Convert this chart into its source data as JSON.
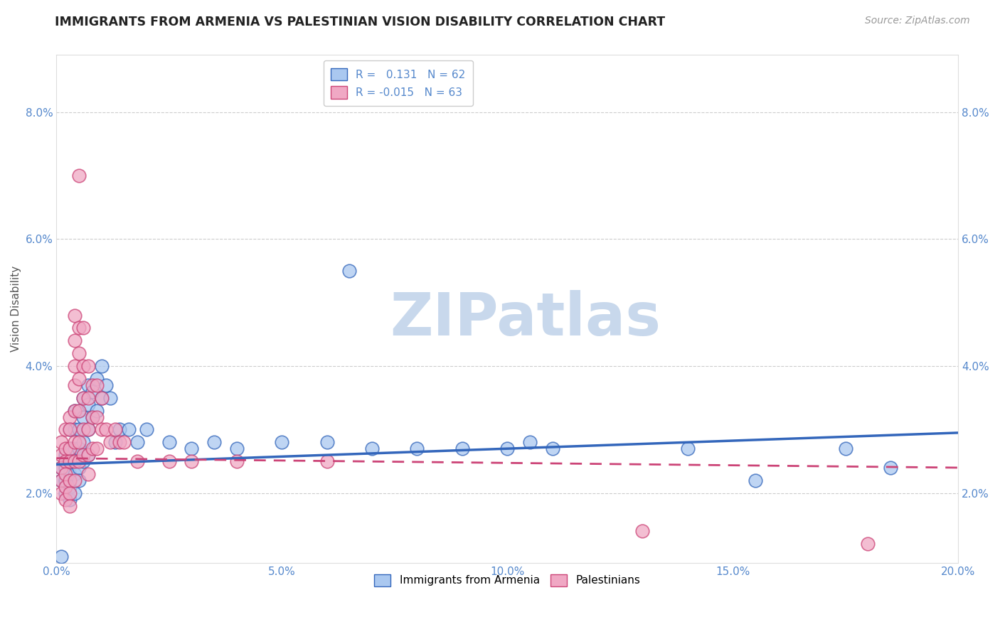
{
  "title": "IMMIGRANTS FROM ARMENIA VS PALESTINIAN VISION DISABILITY CORRELATION CHART",
  "source": "Source: ZipAtlas.com",
  "ylabel": "Vision Disability",
  "xlabel": "",
  "legend_bottom": [
    "Immigrants from Armenia",
    "Palestinians"
  ],
  "armenia_R": "0.131",
  "armenia_N": "62",
  "palestine_R": "-0.015",
  "palestine_N": "63",
  "xlim": [
    0.0,
    0.2
  ],
  "ylim": [
    0.009,
    0.089
  ],
  "yticks": [
    0.02,
    0.04,
    0.06,
    0.08
  ],
  "ytick_labels": [
    "2.0%",
    "4.0%",
    "6.0%",
    "8.0%"
  ],
  "xticks": [
    0.0,
    0.05,
    0.1,
    0.15,
    0.2
  ],
  "xtick_labels": [
    "0.0%",
    "5.0%",
    "10.0%",
    "15.0%",
    "20.0%"
  ],
  "color_armenia": "#aac8f0",
  "color_palestine": "#f0a8c4",
  "line_armenia": "#3366bb",
  "line_palestine": "#cc4477",
  "background_color": "#ffffff",
  "armenia_points": [
    [
      0.001,
      0.024
    ],
    [
      0.001,
      0.022
    ],
    [
      0.001,
      0.01
    ],
    [
      0.002,
      0.026
    ],
    [
      0.002,
      0.024
    ],
    [
      0.002,
      0.022
    ],
    [
      0.002,
      0.02
    ],
    [
      0.003,
      0.03
    ],
    [
      0.003,
      0.027
    ],
    [
      0.003,
      0.025
    ],
    [
      0.003,
      0.023
    ],
    [
      0.003,
      0.021
    ],
    [
      0.003,
      0.019
    ],
    [
      0.004,
      0.033
    ],
    [
      0.004,
      0.03
    ],
    [
      0.004,
      0.027
    ],
    [
      0.004,
      0.025
    ],
    [
      0.004,
      0.023
    ],
    [
      0.004,
      0.02
    ],
    [
      0.005,
      0.033
    ],
    [
      0.005,
      0.03
    ],
    [
      0.005,
      0.027
    ],
    [
      0.005,
      0.024
    ],
    [
      0.005,
      0.022
    ],
    [
      0.006,
      0.035
    ],
    [
      0.006,
      0.032
    ],
    [
      0.006,
      0.028
    ],
    [
      0.006,
      0.025
    ],
    [
      0.007,
      0.037
    ],
    [
      0.007,
      0.034
    ],
    [
      0.007,
      0.03
    ],
    [
      0.007,
      0.026
    ],
    [
      0.008,
      0.036
    ],
    [
      0.008,
      0.032
    ],
    [
      0.009,
      0.038
    ],
    [
      0.009,
      0.033
    ],
    [
      0.01,
      0.04
    ],
    [
      0.01,
      0.035
    ],
    [
      0.011,
      0.037
    ],
    [
      0.012,
      0.035
    ],
    [
      0.013,
      0.028
    ],
    [
      0.014,
      0.03
    ],
    [
      0.016,
      0.03
    ],
    [
      0.018,
      0.028
    ],
    [
      0.02,
      0.03
    ],
    [
      0.025,
      0.028
    ],
    [
      0.03,
      0.027
    ],
    [
      0.035,
      0.028
    ],
    [
      0.04,
      0.027
    ],
    [
      0.05,
      0.028
    ],
    [
      0.06,
      0.028
    ],
    [
      0.065,
      0.055
    ],
    [
      0.07,
      0.027
    ],
    [
      0.08,
      0.027
    ],
    [
      0.09,
      0.027
    ],
    [
      0.1,
      0.027
    ],
    [
      0.105,
      0.028
    ],
    [
      0.11,
      0.027
    ],
    [
      0.14,
      0.027
    ],
    [
      0.155,
      0.022
    ],
    [
      0.175,
      0.027
    ],
    [
      0.185,
      0.024
    ]
  ],
  "palestine_points": [
    [
      0.001,
      0.028
    ],
    [
      0.001,
      0.026
    ],
    [
      0.001,
      0.024
    ],
    [
      0.001,
      0.022
    ],
    [
      0.001,
      0.02
    ],
    [
      0.002,
      0.03
    ],
    [
      0.002,
      0.027
    ],
    [
      0.002,
      0.025
    ],
    [
      0.002,
      0.023
    ],
    [
      0.002,
      0.021
    ],
    [
      0.002,
      0.019
    ],
    [
      0.003,
      0.032
    ],
    [
      0.003,
      0.03
    ],
    [
      0.003,
      0.027
    ],
    [
      0.003,
      0.025
    ],
    [
      0.003,
      0.022
    ],
    [
      0.003,
      0.02
    ],
    [
      0.003,
      0.018
    ],
    [
      0.004,
      0.048
    ],
    [
      0.004,
      0.044
    ],
    [
      0.004,
      0.04
    ],
    [
      0.004,
      0.037
    ],
    [
      0.004,
      0.033
    ],
    [
      0.004,
      0.028
    ],
    [
      0.004,
      0.025
    ],
    [
      0.004,
      0.022
    ],
    [
      0.005,
      0.07
    ],
    [
      0.005,
      0.046
    ],
    [
      0.005,
      0.042
    ],
    [
      0.005,
      0.038
    ],
    [
      0.005,
      0.033
    ],
    [
      0.005,
      0.028
    ],
    [
      0.005,
      0.025
    ],
    [
      0.006,
      0.046
    ],
    [
      0.006,
      0.04
    ],
    [
      0.006,
      0.035
    ],
    [
      0.006,
      0.03
    ],
    [
      0.006,
      0.026
    ],
    [
      0.007,
      0.04
    ],
    [
      0.007,
      0.035
    ],
    [
      0.007,
      0.03
    ],
    [
      0.007,
      0.026
    ],
    [
      0.007,
      0.023
    ],
    [
      0.008,
      0.037
    ],
    [
      0.008,
      0.032
    ],
    [
      0.008,
      0.027
    ],
    [
      0.009,
      0.037
    ],
    [
      0.009,
      0.032
    ],
    [
      0.009,
      0.027
    ],
    [
      0.01,
      0.035
    ],
    [
      0.01,
      0.03
    ],
    [
      0.011,
      0.03
    ],
    [
      0.012,
      0.028
    ],
    [
      0.013,
      0.03
    ],
    [
      0.014,
      0.028
    ],
    [
      0.015,
      0.028
    ],
    [
      0.018,
      0.025
    ],
    [
      0.025,
      0.025
    ],
    [
      0.03,
      0.025
    ],
    [
      0.04,
      0.025
    ],
    [
      0.06,
      0.025
    ],
    [
      0.13,
      0.014
    ],
    [
      0.18,
      0.012
    ]
  ],
  "watermark_text": "ZIPatlas",
  "watermark_color": "#c8d8ec",
  "title_color": "#222222",
  "tick_color": "#5588cc",
  "grid_color": "#cccccc",
  "grid_style": "--"
}
